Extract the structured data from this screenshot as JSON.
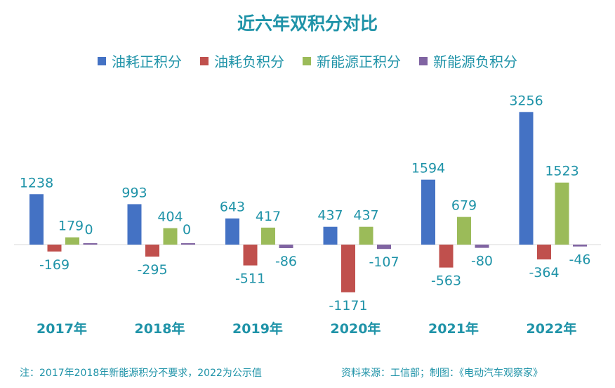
{
  "chart_data": {
    "type": "bar",
    "title": "近六年双积分对比",
    "categories": [
      "2017年",
      "2018年",
      "2019年",
      "2020年",
      "2021年",
      "2022年"
    ],
    "series": [
      {
        "name": "油耗正积分",
        "color": "#4472c4",
        "values": [
          1238,
          993,
          643,
          437,
          1594,
          3256
        ]
      },
      {
        "name": "油耗负积分",
        "color": "#c0504d",
        "values": [
          -169,
          -295,
          -511,
          -1171,
          -563,
          -364
        ]
      },
      {
        "name": "新能源正积分",
        "color": "#9bbb59",
        "values": [
          179,
          404,
          417,
          437,
          679,
          1523
        ]
      },
      {
        "name": "新能源负积分",
        "color": "#8064a2",
        "values": [
          0,
          0,
          -86,
          -107,
          -80,
          -46
        ]
      }
    ],
    "legend_position": "top",
    "grid": false,
    "ylim": [
      -1200,
      3300
    ]
  },
  "footer": {
    "note": "注：2017年2018年新能源积分不要求，2022为公示值",
    "source": "资料来源：工信部；制图：《电动汽车观察家》"
  }
}
